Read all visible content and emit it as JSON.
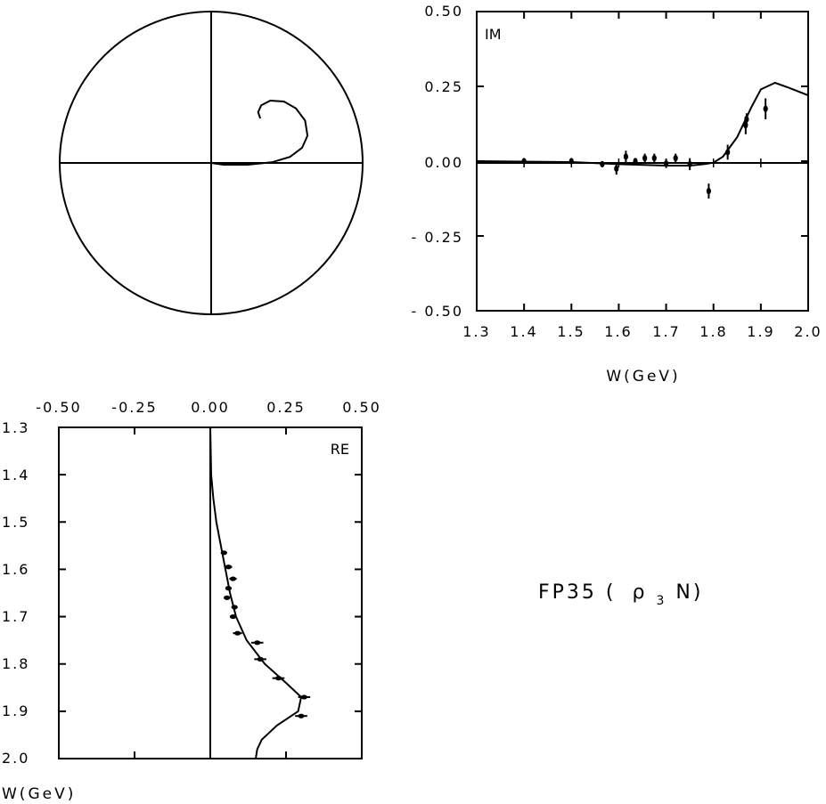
{
  "title": "FP35 ( ρ3N)",
  "title_main": "FP35 (",
  "title_rho": "ρ",
  "title_sub": "3",
  "title_end": "N)",
  "chart_data": [
    {
      "type": "argand",
      "panel": "argand",
      "axes": {
        "re_range": [
          -0.5,
          0.5
        ],
        "im_range": [
          -0.5,
          0.5
        ]
      },
      "curve": [
        {
          "re": 0.0,
          "im": 0.0
        },
        {
          "re": 0.04,
          "im": -0.006
        },
        {
          "re": 0.12,
          "im": -0.006
        },
        {
          "re": 0.2,
          "im": 0.002
        },
        {
          "re": 0.26,
          "im": 0.02
        },
        {
          "re": 0.3,
          "im": 0.05
        },
        {
          "re": 0.318,
          "im": 0.09
        },
        {
          "re": 0.31,
          "im": 0.14
        },
        {
          "re": 0.28,
          "im": 0.18
        },
        {
          "re": 0.24,
          "im": 0.203
        },
        {
          "re": 0.195,
          "im": 0.206
        },
        {
          "re": 0.165,
          "im": 0.19
        },
        {
          "re": 0.155,
          "im": 0.168
        },
        {
          "re": 0.162,
          "im": 0.147
        }
      ]
    },
    {
      "type": "scatter",
      "panel": "imaginary",
      "label": "IM",
      "xlabel": "W(GeV)",
      "xlim": [
        1.3,
        2.0
      ],
      "ylim": [
        -0.5,
        0.5
      ],
      "x_ticks": [
        "1.3",
        "1.4",
        "1.5",
        "1.6",
        "1.7",
        "1.8",
        "1.9",
        "2.0"
      ],
      "y_ticks": [
        "0.50",
        "0.25",
        "0.00",
        "- 0.25",
        "- 0.50"
      ],
      "points": [
        {
          "w": 1.4,
          "v": 0.0,
          "err": 0.0
        },
        {
          "w": 1.5,
          "v": 0.0,
          "err": 0.0
        },
        {
          "w": 1.565,
          "v": -0.01,
          "err": 0.01
        },
        {
          "w": 1.595,
          "v": -0.025,
          "err": 0.02
        },
        {
          "w": 1.615,
          "v": 0.015,
          "err": 0.02
        },
        {
          "w": 1.635,
          "v": 0.0,
          "err": 0.01
        },
        {
          "w": 1.655,
          "v": 0.01,
          "err": 0.015
        },
        {
          "w": 1.675,
          "v": 0.01,
          "err": 0.015
        },
        {
          "w": 1.7,
          "v": -0.008,
          "err": 0.015
        },
        {
          "w": 1.72,
          "v": 0.01,
          "err": 0.015
        },
        {
          "w": 1.75,
          "v": -0.01,
          "err": 0.02
        },
        {
          "w": 1.79,
          "v": -0.1,
          "err": 0.025
        },
        {
          "w": 1.83,
          "v": 0.03,
          "err": 0.025
        },
        {
          "w": 1.868,
          "v": 0.12,
          "err": 0.03
        },
        {
          "w": 1.87,
          "v": 0.14,
          "err": 0.02
        },
        {
          "w": 1.91,
          "v": 0.175,
          "err": 0.035
        }
      ],
      "curve": [
        {
          "w": 1.3,
          "v": 0.0
        },
        {
          "w": 1.5,
          "v": -0.003
        },
        {
          "w": 1.6,
          "v": -0.01
        },
        {
          "w": 1.7,
          "v": -0.015
        },
        {
          "w": 1.75,
          "v": -0.015
        },
        {
          "w": 1.78,
          "v": -0.01
        },
        {
          "w": 1.8,
          "v": -0.005
        },
        {
          "w": 1.82,
          "v": 0.015
        },
        {
          "w": 1.85,
          "v": 0.08
        },
        {
          "w": 1.88,
          "v": 0.18
        },
        {
          "w": 1.9,
          "v": 0.24
        },
        {
          "w": 1.93,
          "v": 0.262
        },
        {
          "w": 1.96,
          "v": 0.245
        },
        {
          "w": 2.0,
          "v": 0.22
        }
      ]
    },
    {
      "type": "scatter",
      "panel": "real",
      "label": "RE",
      "ylabel": "W(GeV)",
      "xlim": [
        -0.5,
        0.5
      ],
      "ylim": [
        1.3,
        2.0
      ],
      "x_ticks": [
        "-0.50",
        "-0.25",
        "0.00",
        "0.25",
        "0.50"
      ],
      "y_ticks": [
        "1.3",
        "1.4",
        "1.5",
        "1.6",
        "1.7",
        "1.8",
        "1.9",
        "2.0"
      ],
      "points": [
        {
          "w": 1.565,
          "v": 0.045,
          "err": 0.01
        },
        {
          "w": 1.595,
          "v": 0.06,
          "err": 0.012
        },
        {
          "w": 1.62,
          "v": 0.075,
          "err": 0.012
        },
        {
          "w": 1.64,
          "v": 0.06,
          "err": 0.01
        },
        {
          "w": 1.66,
          "v": 0.055,
          "err": 0.01
        },
        {
          "w": 1.68,
          "v": 0.08,
          "err": 0.01
        },
        {
          "w": 1.7,
          "v": 0.075,
          "err": 0.01
        },
        {
          "w": 1.735,
          "v": 0.09,
          "err": 0.015
        },
        {
          "w": 1.755,
          "v": 0.155,
          "err": 0.02
        },
        {
          "w": 1.79,
          "v": 0.165,
          "err": 0.02
        },
        {
          "w": 1.83,
          "v": 0.225,
          "err": 0.02
        },
        {
          "w": 1.87,
          "v": 0.31,
          "err": 0.02
        },
        {
          "w": 1.91,
          "v": 0.3,
          "err": 0.02
        }
      ],
      "curve": [
        {
          "w": 1.3,
          "v": 0.0
        },
        {
          "w": 1.4,
          "v": 0.003
        },
        {
          "w": 1.45,
          "v": 0.01
        },
        {
          "w": 1.5,
          "v": 0.02
        },
        {
          "w": 1.55,
          "v": 0.035
        },
        {
          "w": 1.6,
          "v": 0.05
        },
        {
          "w": 1.65,
          "v": 0.065
        },
        {
          "w": 1.7,
          "v": 0.085
        },
        {
          "w": 1.75,
          "v": 0.12
        },
        {
          "w": 1.8,
          "v": 0.18
        },
        {
          "w": 1.84,
          "v": 0.25
        },
        {
          "w": 1.87,
          "v": 0.3
        },
        {
          "w": 1.9,
          "v": 0.29
        },
        {
          "w": 1.93,
          "v": 0.22
        },
        {
          "w": 1.96,
          "v": 0.17
        },
        {
          "w": 1.98,
          "v": 0.155
        },
        {
          "w": 2.0,
          "v": 0.15
        }
      ]
    }
  ]
}
